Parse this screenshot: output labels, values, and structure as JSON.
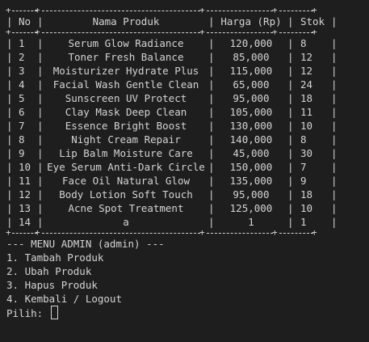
{
  "table": {
    "headers": {
      "no": "No",
      "name": "Nama Produk",
      "price": "Harga (Rp)",
      "stock": "Stok"
    },
    "rows": [
      {
        "no": "1",
        "name": "Serum Glow Radiance",
        "price": "120,000",
        "stock": "8"
      },
      {
        "no": "2",
        "name": "Toner Fresh Balance",
        "price": "85,000",
        "stock": "12"
      },
      {
        "no": "3",
        "name": "Moisturizer Hydrate Plus",
        "price": "115,000",
        "stock": "12"
      },
      {
        "no": "4",
        "name": "Facial Wash Gentle Clean",
        "price": "65,000",
        "stock": "24"
      },
      {
        "no": "5",
        "name": "Sunscreen UV Protect",
        "price": "95,000",
        "stock": "18"
      },
      {
        "no": "6",
        "name": "Clay Mask Deep Clean",
        "price": "105,000",
        "stock": "11"
      },
      {
        "no": "7",
        "name": "Essence Bright Boost",
        "price": "130,000",
        "stock": "10"
      },
      {
        "no": "8",
        "name": "Night Cream Repair",
        "price": "140,000",
        "stock": "8"
      },
      {
        "no": "9",
        "name": "Lip Balm Moisture Care",
        "price": "45,000",
        "stock": "30"
      },
      {
        "no": "10",
        "name": "Eye Serum Anti-Dark Circle",
        "price": "150,000",
        "stock": "7"
      },
      {
        "no": "11",
        "name": "Face Oil Natural Glow",
        "price": "135,000",
        "stock": "9"
      },
      {
        "no": "12",
        "name": "Body Lotion Soft Touch",
        "price": "95,000",
        "stock": "18"
      },
      {
        "no": "13",
        "name": "Acne Spot Treatment",
        "price": "125,000",
        "stock": "10"
      },
      {
        "no": "14",
        "name": "a",
        "price": "1",
        "stock": "1"
      }
    ]
  },
  "menu": {
    "title": "--- MENU ADMIN (admin) ---",
    "items": [
      "1. Tambah Produk",
      "2. Ubah Produk",
      "3. Hapus Produk",
      "4. Kembali / Logout"
    ],
    "prompt": "Pilih: "
  },
  "colors": {
    "background": "#1e1e1e",
    "text": "#d4d4d4"
  }
}
